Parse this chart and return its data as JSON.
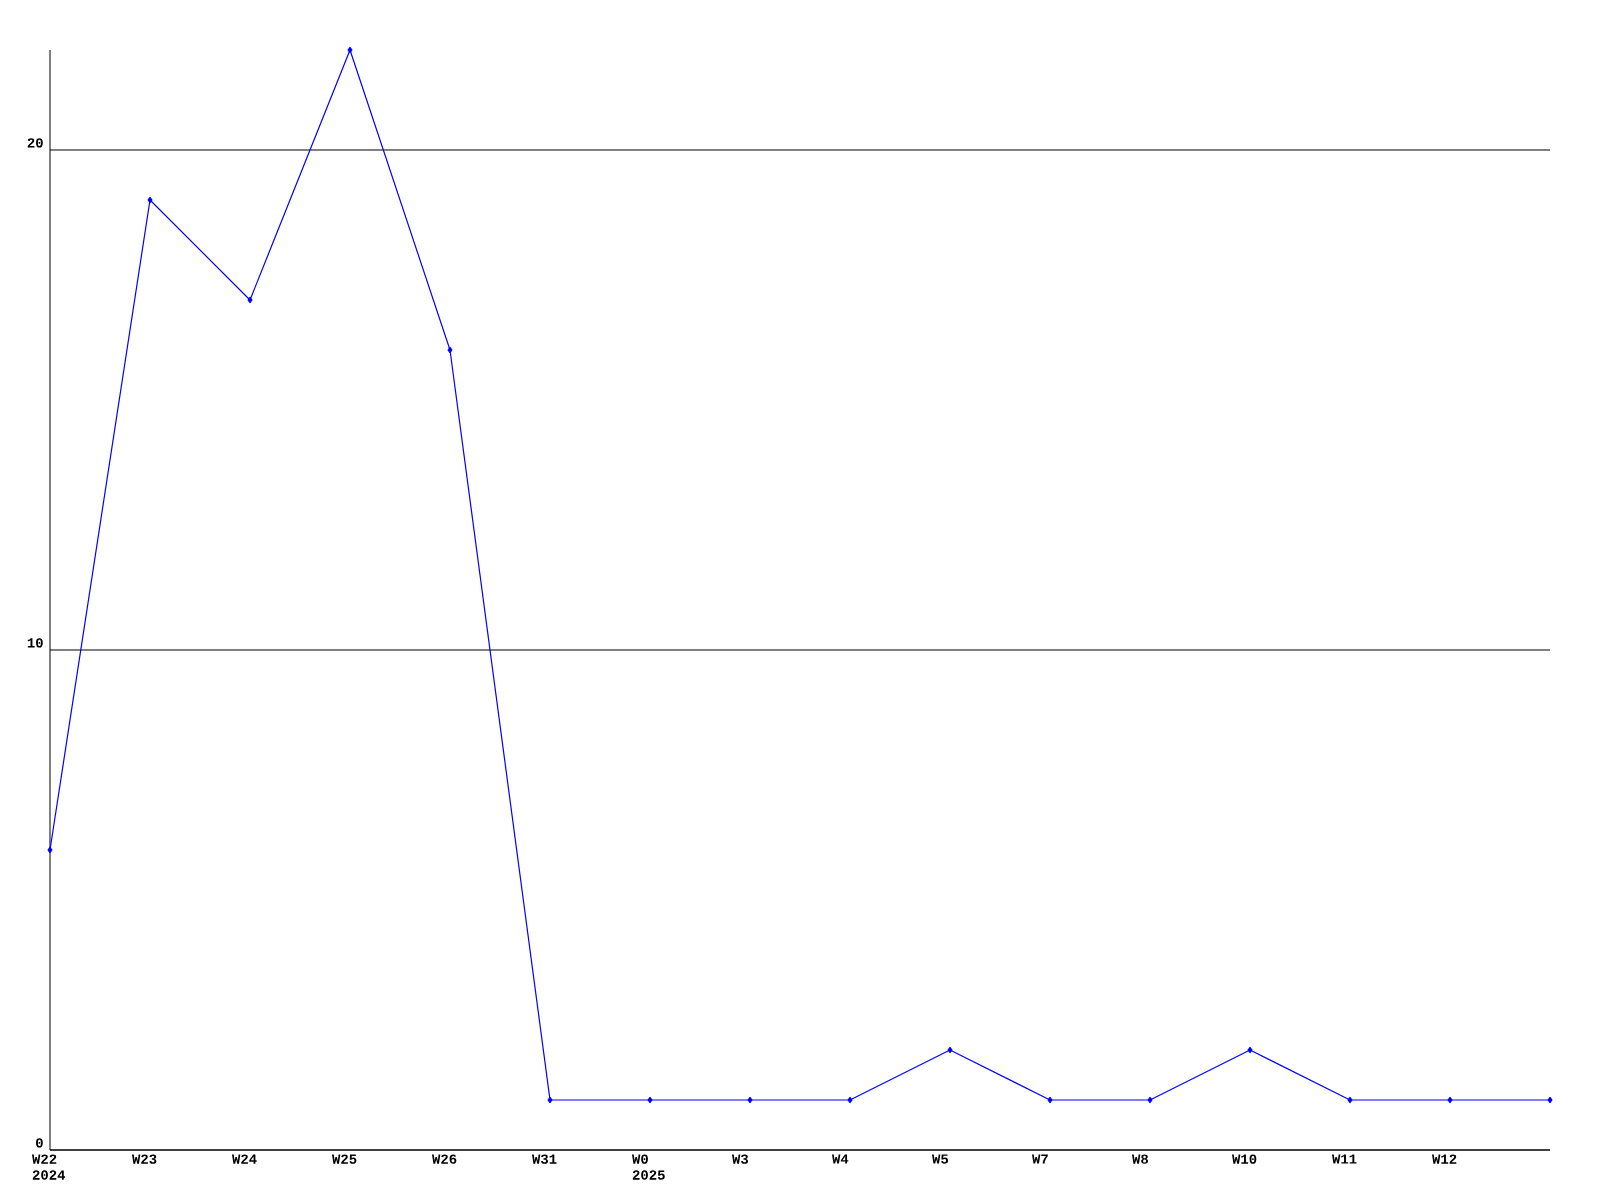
{
  "chart_data": {
    "type": "line",
    "categories": [
      "W22 2024",
      "W23",
      "W24",
      "W25",
      "W26",
      "W31",
      "W0 2025",
      "W3",
      "W4",
      "W5",
      "W7",
      "W8",
      "W10",
      "W11",
      "W12",
      null
    ],
    "series": [
      {
        "color": "#0000ff",
        "values": [
          6,
          19,
          17,
          22,
          16,
          1,
          1,
          1,
          1,
          2,
          1,
          1,
          2,
          1,
          1,
          1
        ]
      }
    ],
    "ylim": [
      0,
      22
    ],
    "yticks": [
      0,
      10,
      20
    ],
    "grid": "y",
    "marker": "diamond",
    "line_style": "solid"
  }
}
